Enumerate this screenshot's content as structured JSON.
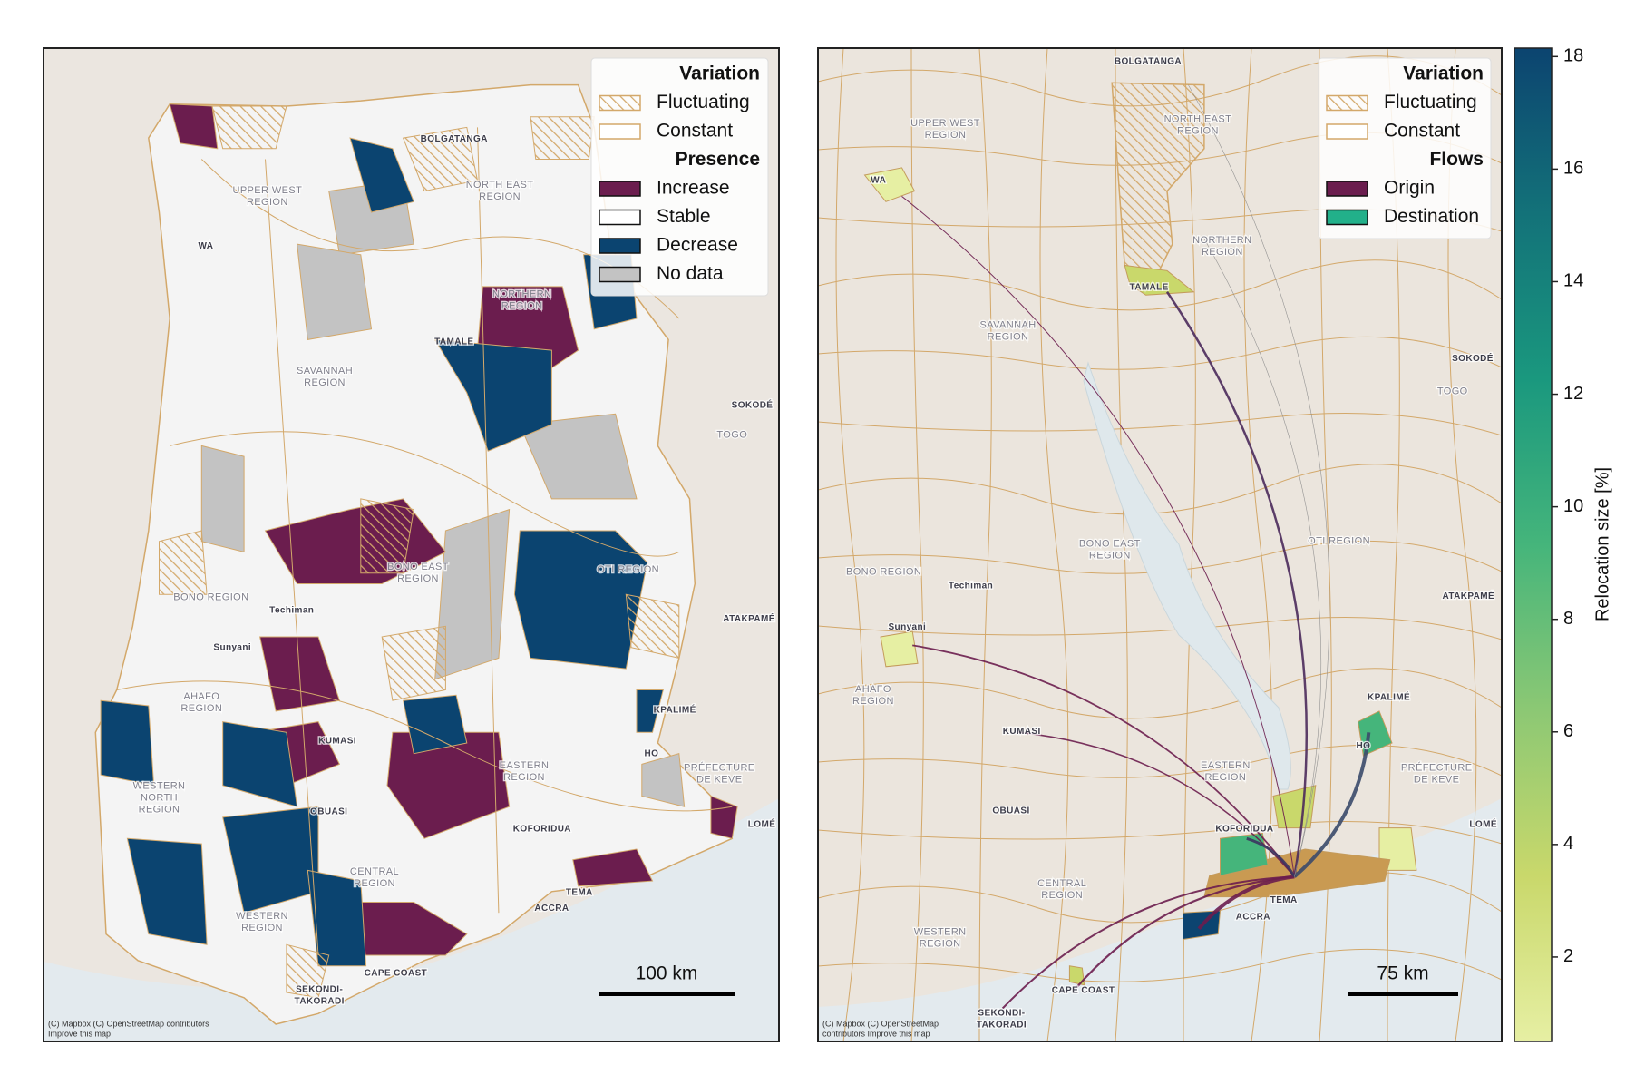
{
  "left_map": {
    "legend": [
      {
        "title": "Variation",
        "items": [
          {
            "label": "Fluctuating",
            "style": "hatch"
          },
          {
            "label": "Constant",
            "style": "outline"
          }
        ]
      },
      {
        "title": "Presence",
        "items": [
          {
            "label": "Increase",
            "color": "#6b1d4e"
          },
          {
            "label": "Stable",
            "color": "#ffffff"
          },
          {
            "label": "Decrease",
            "color": "#0b4470"
          },
          {
            "label": "No data",
            "color": "#c3c3c3"
          }
        ]
      }
    ],
    "places": [
      [
        "BOLGATANGA"
      ],
      [
        "UPPER WEST",
        "REGION"
      ],
      [
        "NORTH EAST",
        "REGION"
      ],
      [
        "WA"
      ],
      [
        "NORTHERN",
        "REGION"
      ],
      [
        "TAMALE"
      ],
      [
        "SAVANNAH",
        "REGION"
      ],
      [
        "SOKODÉ"
      ],
      [
        "TOGO"
      ],
      [
        "BONO EAST",
        "REGION"
      ],
      [
        "OTI REGION"
      ],
      [
        "BONO REGION"
      ],
      [
        "Techiman"
      ],
      [
        "ATAKPAMÉ"
      ],
      [
        "Sunyani"
      ],
      [
        "AHAFO",
        "REGION"
      ],
      [
        "KPALIMÉ"
      ],
      [
        "KUMASI"
      ],
      [
        "HO"
      ],
      [
        "PRÉFECTURE",
        "DE KEVE"
      ],
      [
        "EASTERN",
        "REGION"
      ],
      [
        "WESTERN",
        "NORTH",
        "REGION"
      ],
      [
        "OBUASI"
      ],
      [
        "KOFORIDUA"
      ],
      [
        "LOMÉ"
      ],
      [
        "CENTRAL",
        "REGION"
      ],
      [
        "TEMA"
      ],
      [
        "ACCRA"
      ],
      [
        "WESTERN",
        "REGION"
      ],
      [
        "CAPE COAST"
      ],
      [
        "SEKONDI-",
        "TAKORADI"
      ]
    ],
    "scale_bar": "100 km",
    "attribution": [
      "(C) Mapbox (C) OpenStreetMap contributors",
      "Improve this map"
    ]
  },
  "right_map": {
    "legend": [
      {
        "title": "Variation",
        "items": [
          {
            "label": "Fluctuating",
            "style": "hatch"
          },
          {
            "label": "Constant",
            "style": "outline"
          }
        ]
      },
      {
        "title": "Flows",
        "items": [
          {
            "label": "Origin",
            "color": "#6b1d4e"
          },
          {
            "label": "Destination",
            "color": "#22b08a"
          }
        ]
      }
    ],
    "places": [
      [
        "BOLGATANGA"
      ],
      [
        "UPPER WEST",
        "REGION"
      ],
      [
        "NORTH EAST",
        "REGION"
      ],
      [
        "WA"
      ],
      [
        "NORTHERN",
        "REGION"
      ],
      [
        "TAMALE"
      ],
      [
        "SAVANNAH",
        "REGION"
      ],
      [
        "SOKODÉ"
      ],
      [
        "TOGO"
      ],
      [
        "BONO EAST",
        "REGION"
      ],
      [
        "OTI REGION"
      ],
      [
        "BONO REGION"
      ],
      [
        "Techiman"
      ],
      [
        "ATAKPAMÉ"
      ],
      [
        "Sunyani"
      ],
      [
        "AHAFO",
        "REGION"
      ],
      [
        "KPALIMÉ"
      ],
      [
        "KUMASI"
      ],
      [
        "HO"
      ],
      [
        "PRÉFECTURE",
        "DE KEVE"
      ],
      [
        "EASTERN",
        "REGION"
      ],
      [
        "OBUASI"
      ],
      [
        "KOFORIDUA"
      ],
      [
        "LOMÉ"
      ],
      [
        "CENTRAL",
        "REGION"
      ],
      [
        "TEMA"
      ],
      [
        "ACCRA"
      ],
      [
        "WESTERN",
        "REGION"
      ],
      [
        "CAPE COAST"
      ],
      [
        "SEKONDI-",
        "TAKORADI"
      ]
    ],
    "scale_bar": "75 km",
    "attribution": [
      "(C) Mapbox (C) OpenStreetMap",
      "contributors Improve this map"
    ]
  },
  "colorbar": {
    "label": "Relocation size [%]",
    "lim": [
      0.5,
      18.15
    ],
    "ticks": [
      2,
      4,
      6,
      8,
      10,
      12,
      14,
      16,
      18
    ],
    "colors": [
      "#e6efa3",
      "#c9d86b",
      "#8cc874",
      "#45b57b",
      "#1a987e",
      "#137279",
      "#0c4470"
    ]
  }
}
